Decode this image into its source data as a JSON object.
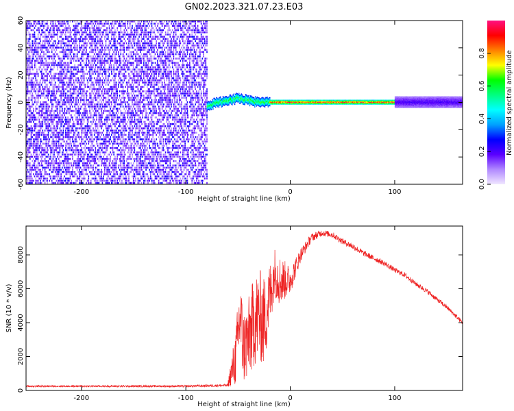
{
  "figure": {
    "title": "GN02.2023.321.07.23.E03"
  },
  "chart_data": [
    {
      "type": "heatmap",
      "xlabel": "Height of straight line (km)",
      "ylabel": "Frequency (Hz)",
      "xlim": [
        -253,
        165
      ],
      "ylim": [
        -60,
        60
      ],
      "xticks": [
        -200,
        -100,
        0,
        100
      ],
      "yticks": [
        -60,
        -40,
        -20,
        0,
        20,
        40,
        60
      ],
      "colorbar": {
        "label": "Normalized spectral amplitude",
        "range": [
          0,
          1
        ],
        "ticks": [
          0.0,
          0.2,
          0.4,
          0.6,
          0.8
        ],
        "colors": [
          "#f0e6ff",
          "#b088ff",
          "#5a00ff",
          "#0000ff",
          "#00a0ff",
          "#00ffff",
          "#00ff80",
          "#00ff00",
          "#ffff00",
          "#ff8000",
          "#ff0000",
          "#ff1080"
        ]
      },
      "regions": [
        {
          "x_range": [
            -253,
            -80
          ],
          "y_range": [
            -60,
            60
          ],
          "amplitude": 0.15,
          "texture": "noise"
        },
        {
          "x_range": [
            -80,
            -20
          ],
          "y_center": [
            [
              -80,
              -3
            ],
            [
              -70,
              0
            ],
            [
              -60,
              1
            ],
            [
              -50,
              3
            ],
            [
              -40,
              1
            ],
            [
              -30,
              0
            ],
            [
              -20,
              0
            ]
          ],
          "half_width_hz": 3,
          "amplitude": 0.6
        },
        {
          "x_range": [
            -20,
            165
          ],
          "y_center": 0,
          "half_width_hz": 1.5,
          "amplitude": 0.85
        },
        {
          "x_range": [
            100,
            165
          ],
          "y_center": 0,
          "half_width_hz": 4,
          "amplitude": 0.2
        }
      ]
    },
    {
      "type": "line",
      "xlabel": "Height of straight line (km)",
      "ylabel": "SNR (10 * v/v)",
      "xlim": [
        -253,
        165
      ],
      "ylim": [
        0,
        9700
      ],
      "xticks": [
        -200,
        -100,
        0,
        100
      ],
      "yticks": [
        0,
        2000,
        4000,
        6000,
        8000
      ],
      "series": [
        {
          "color": "#ee2222",
          "x": [
            -253,
            -200,
            -150,
            -100,
            -60,
            -52,
            -48,
            -45,
            -40,
            -35,
            -30,
            -25,
            -20,
            -15,
            -10,
            0,
            10,
            20,
            30,
            40,
            50,
            60,
            70,
            80,
            90,
            100,
            110,
            120,
            130,
            140,
            150,
            160,
            165
          ],
          "y": [
            250,
            250,
            250,
            250,
            300,
            2000,
            4500,
            2500,
            3000,
            4000,
            4500,
            4000,
            5500,
            7000,
            6500,
            6500,
            8000,
            9000,
            9300,
            9200,
            8800,
            8500,
            8100,
            7800,
            7500,
            7100,
            6800,
            6300,
            5900,
            5400,
            4900,
            4300,
            4000
          ],
          "noise": [
            50,
            50,
            60,
            60,
            80,
            1800,
            2500,
            2200,
            2500,
            2700,
            2800,
            2700,
            2000,
            1500,
            1500,
            800,
            400,
            250,
            200,
            180,
            180,
            180,
            170,
            160,
            160,
            150,
            150,
            150,
            140,
            140,
            130,
            130,
            130
          ]
        }
      ]
    }
  ]
}
